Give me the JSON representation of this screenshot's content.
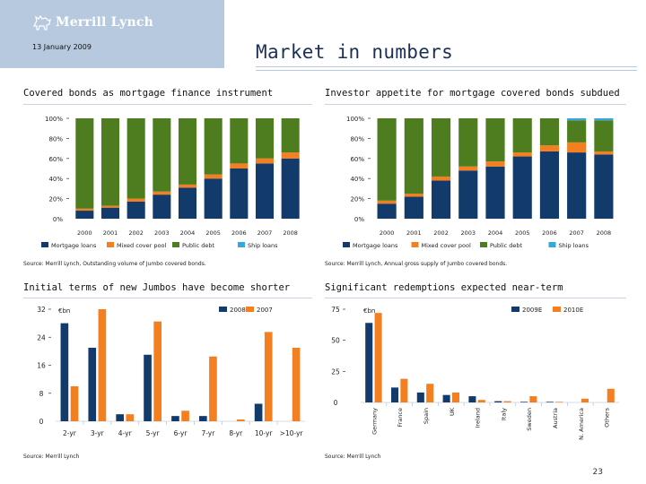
{
  "header": {
    "logo_text": "Merrill Lynch",
    "date": "13 January 2009",
    "title": "Market in numbers",
    "page_number": "23"
  },
  "colors": {
    "mortgage": "#123a6b",
    "mixed": "#f37f20",
    "public": "#4e7d1f",
    "ship": "#36a6dc",
    "y2008": "#123a6b",
    "y2007": "#f37f20",
    "header_bg": "#b7c9df"
  },
  "sections": {
    "tl": {
      "title": "Covered bonds as mortgage finance instrument",
      "source": "Source: Merrill Lynch, Outstanding volume of Jumbo covered bonds."
    },
    "tr": {
      "title": "Investor appetite for mortgage covered bonds subdued",
      "source": "Source: Merrill Lynch, Annual gross supply of Jumbo covered bonds."
    },
    "bl": {
      "title": "Initial terms of new Jumbos have become shorter",
      "source": "Source: Merrill Lynch"
    },
    "br": {
      "title": "Significant redemptions expected near-term",
      "source": "Source: Merrill Lynch"
    }
  },
  "chart_data": [
    {
      "type": "bar",
      "stacked": true,
      "title": "Covered bonds as mortgage finance instrument",
      "categories": [
        "2000",
        "2001",
        "2002",
        "2003",
        "2004",
        "2005",
        "2006",
        "2007",
        "2008"
      ],
      "y_ticks": [
        "0%",
        "20%",
        "40%",
        "60%",
        "80%",
        "100%"
      ],
      "ylim": [
        0,
        100
      ],
      "series": [
        {
          "name": "Mortgage loans",
          "color": "#123a6b",
          "values": [
            8,
            11,
            17,
            24,
            31,
            40,
            50,
            55,
            60
          ]
        },
        {
          "name": "Mixed cover pool",
          "color": "#f37f20",
          "values": [
            2,
            2,
            3,
            3,
            3,
            4,
            5,
            5,
            6
          ]
        },
        {
          "name": "Public debt",
          "color": "#4e7d1f",
          "values": [
            90,
            87,
            80,
            73,
            66,
            56,
            45,
            40,
            34
          ]
        },
        {
          "name": "Ship loans",
          "color": "#36a6dc",
          "values": [
            0,
            0,
            0,
            0,
            0,
            0,
            0,
            0,
            0
          ]
        }
      ],
      "legend_position": "bottom"
    },
    {
      "type": "bar",
      "stacked": true,
      "title": "Investor appetite for mortgage covered bonds subdued",
      "categories": [
        "2000",
        "2001",
        "2002",
        "2003",
        "2004",
        "2005",
        "2006",
        "2007",
        "2008"
      ],
      "y_ticks": [
        "0%",
        "20%",
        "40%",
        "60%",
        "80%",
        "100%"
      ],
      "ylim": [
        0,
        100
      ],
      "series": [
        {
          "name": "Mortgage loans",
          "color": "#123a6b",
          "values": [
            15,
            22,
            38,
            48,
            52,
            62,
            67,
            66,
            64
          ]
        },
        {
          "name": "Mixed cover pool",
          "color": "#f37f20",
          "values": [
            3,
            3,
            4,
            4,
            5,
            4,
            6,
            10,
            3
          ]
        },
        {
          "name": "Public debt",
          "color": "#4e7d1f",
          "values": [
            82,
            75,
            58,
            48,
            43,
            34,
            27,
            22,
            31
          ]
        },
        {
          "name": "Ship loans",
          "color": "#36a6dc",
          "values": [
            0,
            0,
            0,
            0,
            0,
            0,
            0,
            2,
            2
          ]
        }
      ],
      "legend_position": "bottom"
    },
    {
      "type": "bar",
      "stacked": false,
      "title": "Initial terms of new Jumbos have become shorter",
      "unit_label": "€bn",
      "categories": [
        "2-yr",
        "3-yr",
        "4-yr",
        "5-yr",
        "6-yr",
        "7-yr",
        "8-yr",
        "10-yr",
        ">10-yr"
      ],
      "y_ticks": [
        "0",
        "8",
        "16",
        "24",
        "32"
      ],
      "ylim": [
        0,
        32
      ],
      "series": [
        {
          "name": "2008",
          "color": "#123a6b",
          "values": [
            28,
            21,
            2,
            19,
            1.5,
            1.5,
            0,
            5,
            0
          ]
        },
        {
          "name": "2007",
          "color": "#f37f20",
          "values": [
            10,
            32,
            2,
            28.5,
            3,
            18.5,
            0.5,
            25.5,
            21
          ]
        }
      ],
      "legend_position": "top-right"
    },
    {
      "type": "bar",
      "stacked": false,
      "title": "Significant redemptions expected near-term",
      "unit_label": "€bn",
      "categories": [
        "Germany",
        "France",
        "Spain",
        "UK",
        "Ireland",
        "Italy",
        "Sweden",
        "Austria",
        "N. America",
        "Others"
      ],
      "y_ticks": [
        "0",
        "25",
        "50",
        "75"
      ],
      "ylim": [
        0,
        75
      ],
      "series": [
        {
          "name": "2009E",
          "color": "#123a6b",
          "values": [
            64,
            12,
            8,
            6,
            5,
            1,
            0.5,
            0.5,
            0,
            0
          ]
        },
        {
          "name": "2010E",
          "color": "#f37f20",
          "values": [
            72,
            19,
            15,
            8,
            2,
            1,
            5,
            0.5,
            3,
            11
          ]
        }
      ],
      "legend_position": "top-right"
    }
  ]
}
